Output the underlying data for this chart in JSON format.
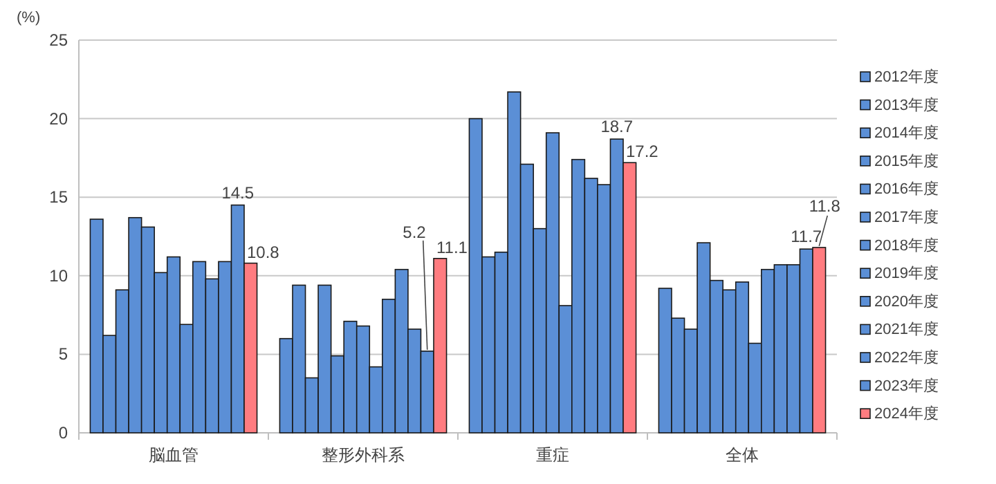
{
  "chart_data": {
    "type": "bar",
    "ylabel": "(%)",
    "categories": [
      "脳血管",
      "整形外科系",
      "重症",
      "全体"
    ],
    "ylim": [
      0,
      25
    ],
    "yticks": [
      0,
      5,
      10,
      15,
      20,
      25
    ],
    "grid": "y",
    "legend": "right",
    "series": [
      {
        "name": "2012年度",
        "color": "#5b8fd6",
        "values": [
          13.6,
          6.0,
          20.0,
          9.2
        ]
      },
      {
        "name": "2013年度",
        "color": "#5b8fd6",
        "values": [
          6.2,
          9.4,
          11.2,
          7.3
        ]
      },
      {
        "name": "2014年度",
        "color": "#5b8fd6",
        "values": [
          9.1,
          3.5,
          11.5,
          6.6
        ]
      },
      {
        "name": "2015年度",
        "color": "#5b8fd6",
        "values": [
          13.7,
          9.4,
          21.7,
          12.1
        ]
      },
      {
        "name": "2016年度",
        "color": "#5b8fd6",
        "values": [
          13.1,
          4.9,
          17.1,
          9.7
        ]
      },
      {
        "name": "2017年度",
        "color": "#5b8fd6",
        "values": [
          10.2,
          7.1,
          13.0,
          9.1
        ]
      },
      {
        "name": "2018年度",
        "color": "#5b8fd6",
        "values": [
          11.2,
          6.8,
          19.1,
          9.6
        ]
      },
      {
        "name": "2019年度",
        "color": "#5b8fd6",
        "values": [
          6.9,
          4.2,
          8.1,
          5.7
        ]
      },
      {
        "name": "2020年度",
        "color": "#5b8fd6",
        "values": [
          10.9,
          8.5,
          17.4,
          10.4
        ]
      },
      {
        "name": "2021年度",
        "color": "#5b8fd6",
        "values": [
          9.8,
          10.4,
          16.2,
          10.7
        ]
      },
      {
        "name": "2022年度",
        "color": "#5b8fd6",
        "values": [
          10.9,
          6.6,
          15.8,
          10.7
        ]
      },
      {
        "name": "2023年度",
        "color": "#5b8fd6",
        "values": [
          14.5,
          5.2,
          18.7,
          11.7
        ],
        "value_labels": [
          "14.5",
          "5.2",
          "18.7",
          "11.7"
        ]
      },
      {
        "name": "2024年度",
        "color": "#ff7c80",
        "values": [
          10.8,
          11.1,
          17.2,
          11.8
        ],
        "value_labels": [
          "10.8",
          "11.1",
          "17.2",
          "11.8"
        ]
      }
    ]
  }
}
